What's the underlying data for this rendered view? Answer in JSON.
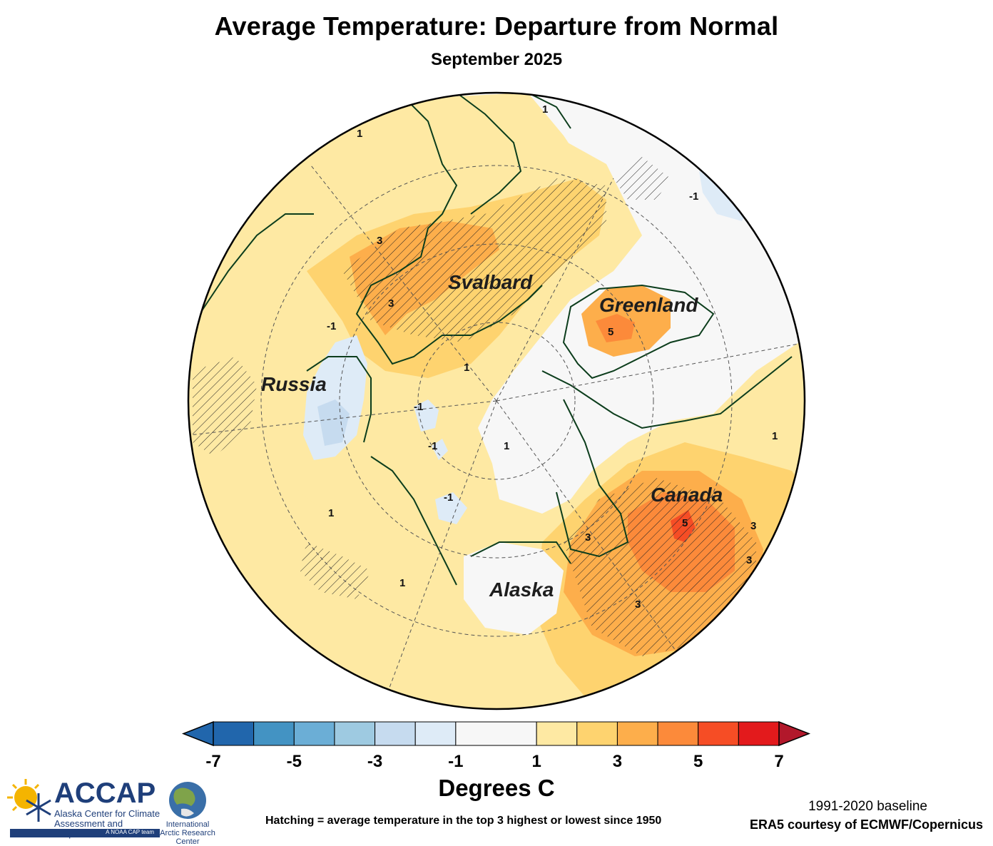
{
  "title": "Average Temperature: Departure from Normal",
  "subtitle": "September 2025",
  "map": {
    "regions": {
      "svalbard": "Svalbard",
      "greenland": "Greenland",
      "russia": "Russia",
      "canada": "Canada",
      "alaska": "Alaska"
    },
    "contour_labels": {
      "greenland_max": "5",
      "canada_max": "5",
      "canada_a": "3",
      "canada_b": "3",
      "canada_c": "3",
      "canada_d": "3",
      "svalbard_a": "3",
      "svalbard_b": "3",
      "siberia_a": "1",
      "siberia_b": "-1",
      "arctic_a": "-1",
      "arctic_b": "-1",
      "arctic_c": "-1",
      "hudson": "-1",
      "ocean_a": "1",
      "ocean_b": "1",
      "ocean_c": "1",
      "ocean_d": "1",
      "ocean_e": "1",
      "canada_e": "1"
    }
  },
  "colorbar": {
    "title": "Degrees C",
    "tick_labels": [
      "-7",
      "-5",
      "-3",
      "-1",
      "1",
      "3",
      "5",
      "7"
    ],
    "bins": [
      {
        "from": -7,
        "to": -6,
        "color": "#2166ac"
      },
      {
        "from": -6,
        "to": -5,
        "color": "#4393c3"
      },
      {
        "from": -5,
        "to": -4,
        "color": "#6baed6"
      },
      {
        "from": -4,
        "to": -3,
        "color": "#9ecae1"
      },
      {
        "from": -3,
        "to": -2,
        "color": "#c6dbef"
      },
      {
        "from": -2,
        "to": -1,
        "color": "#deebf7"
      },
      {
        "from": -1,
        "to": 1,
        "color": "#f7f7f7"
      },
      {
        "from": 1,
        "to": 2,
        "color": "#fee9a3"
      },
      {
        "from": 2,
        "to": 3,
        "color": "#fed36f"
      },
      {
        "from": 3,
        "to": 4,
        "color": "#fdae4b"
      },
      {
        "from": 4,
        "to": 5,
        "color": "#fc8a3a"
      },
      {
        "from": 5,
        "to": 6,
        "color": "#f64d25"
      },
      {
        "from": 6,
        "to": 7,
        "color": "#e31a1c"
      }
    ],
    "under_color": "#2166ac",
    "over_color": "#b2182b"
  },
  "notes": {
    "hatching": "Hatching = average temperature in the top 3 highest or lowest since 1950",
    "baseline": "1991-2020 baseline",
    "source": "ERA5 courtesy of ECMWF/Copernicus"
  },
  "logos": {
    "accap_name": "ACCAP",
    "accap_sub": "Alaska Center for Climate Assessment and Preparedness",
    "accap_tag": "A NOAA CAP team",
    "iarc_name": "International Arctic Research Center"
  }
}
